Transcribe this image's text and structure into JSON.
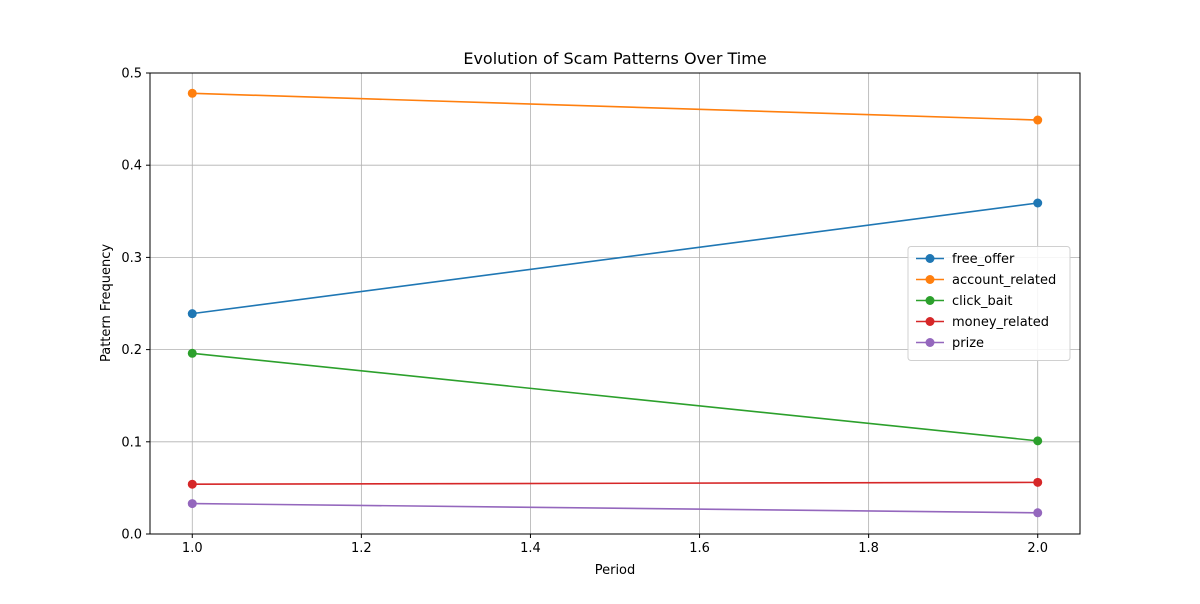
{
  "chart_data": {
    "type": "line",
    "title": "Evolution of Scam Patterns Over Time",
    "xlabel": "Period",
    "ylabel": "Pattern Frequency",
    "xlim": [
      0.95,
      2.05
    ],
    "ylim": [
      0.0,
      0.5
    ],
    "x_ticks": [
      1.0,
      1.2,
      1.4,
      1.6,
      1.8,
      2.0
    ],
    "x_tick_labels": [
      "1.0",
      "1.2",
      "1.4",
      "1.6",
      "1.8",
      "2.0"
    ],
    "y_ticks": [
      0.0,
      0.1,
      0.2,
      0.3,
      0.4,
      0.5
    ],
    "y_tick_labels": [
      "0.0",
      "0.1",
      "0.2",
      "0.3",
      "0.4",
      "0.5"
    ],
    "grid": true,
    "legend_position": "center-right",
    "x": [
      1.0,
      2.0
    ],
    "series": [
      {
        "name": "free_offer",
        "color": "#1f77b4",
        "values": [
          0.239,
          0.359
        ]
      },
      {
        "name": "account_related",
        "color": "#ff7f0e",
        "values": [
          0.478,
          0.449
        ]
      },
      {
        "name": "click_bait",
        "color": "#2ca02c",
        "values": [
          0.196,
          0.101
        ]
      },
      {
        "name": "money_related",
        "color": "#d62728",
        "values": [
          0.054,
          0.056
        ]
      },
      {
        "name": "prize",
        "color": "#9467bd",
        "values": [
          0.033,
          0.023
        ]
      }
    ]
  }
}
